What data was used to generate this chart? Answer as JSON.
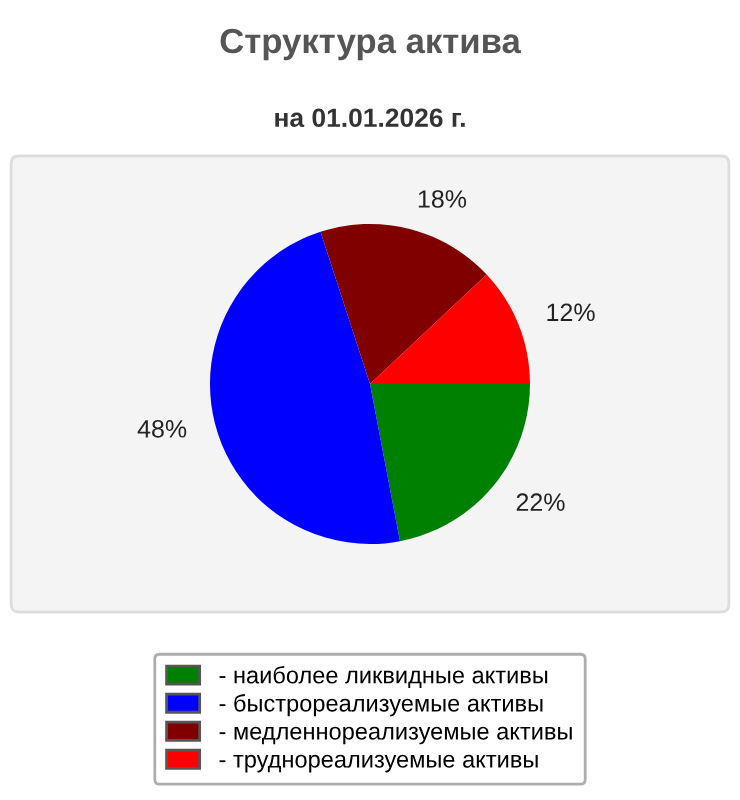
{
  "chart_data": {
    "type": "pie",
    "title": "Структура актива",
    "subtitle": "на 01.01.2026 г.",
    "categories": [
      "- наиболее ликвидные активы",
      "- быстрореализуемые активы",
      "- медленнореализуемые активы",
      "- труднореализуемые активы"
    ],
    "values": [
      22,
      48,
      18,
      12
    ],
    "colors": [
      "#008000",
      "#0000ff",
      "#800000",
      "#ff0000"
    ],
    "value_labels": [
      "22%",
      "48%",
      "18%",
      "12%"
    ],
    "legend": "bottom"
  }
}
